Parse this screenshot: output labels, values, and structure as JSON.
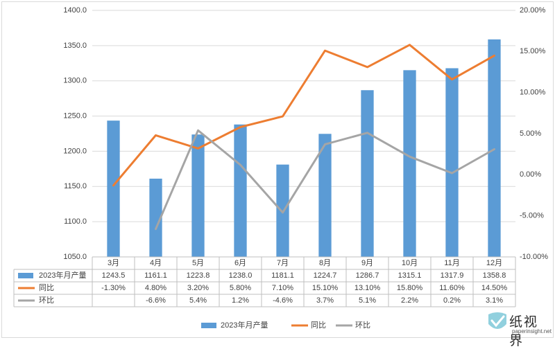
{
  "chart_data": {
    "type": "bar",
    "categories": [
      "3月",
      "4月",
      "5月",
      "6月",
      "7月",
      "8月",
      "9月",
      "10月",
      "11月",
      "12月"
    ],
    "series": [
      {
        "name": "2023年月产量",
        "type": "bar",
        "axis": "left",
        "color": "#5B9BD5",
        "values": [
          1243.5,
          1161.1,
          1223.8,
          1238.0,
          1181.1,
          1224.7,
          1286.7,
          1315.1,
          1317.9,
          1358.8
        ],
        "labels": [
          "1243.5",
          "1161.1",
          "1223.8",
          "1238.0",
          "1181.1",
          "1224.7",
          "1286.7",
          "1315.1",
          "1317.9",
          "1358.8"
        ]
      },
      {
        "name": "同比",
        "type": "line",
        "axis": "right",
        "color": "#ED7D31",
        "values": [
          -1.3,
          4.8,
          3.2,
          5.8,
          7.1,
          15.1,
          13.1,
          15.8,
          11.6,
          14.5
        ],
        "labels": [
          "-1.30%",
          "4.80%",
          "3.20%",
          "5.80%",
          "7.10%",
          "15.10%",
          "13.10%",
          "15.80%",
          "11.60%",
          "14.50%"
        ]
      },
      {
        "name": "环比",
        "type": "line",
        "axis": "right",
        "color": "#A5A5A5",
        "values": [
          null,
          -6.6,
          5.4,
          1.2,
          -4.6,
          3.7,
          5.1,
          2.2,
          0.2,
          3.1
        ],
        "labels": [
          "",
          "-6.6%",
          "5.4%",
          "1.2%",
          "-4.6%",
          "3.7%",
          "5.1%",
          "2.2%",
          "0.2%",
          "3.1%"
        ]
      }
    ],
    "y_left": {
      "ylim": [
        1050,
        1400
      ],
      "ticks": [
        "1050.0",
        "1100.0",
        "1150.0",
        "1200.0",
        "1250.0",
        "1300.0",
        "1350.0",
        "1400.0"
      ]
    },
    "y_right": {
      "ylim": [
        -10,
        20
      ],
      "ticks": [
        "-10.00%",
        "-5.00%",
        "0.00%",
        "5.00%",
        "10.00%",
        "15.00%",
        "20.00%"
      ]
    },
    "grid": true,
    "legend_position": "bottom",
    "data_table": true
  },
  "watermark": {
    "name": "纸视界",
    "url": "paperinsight.net"
  }
}
